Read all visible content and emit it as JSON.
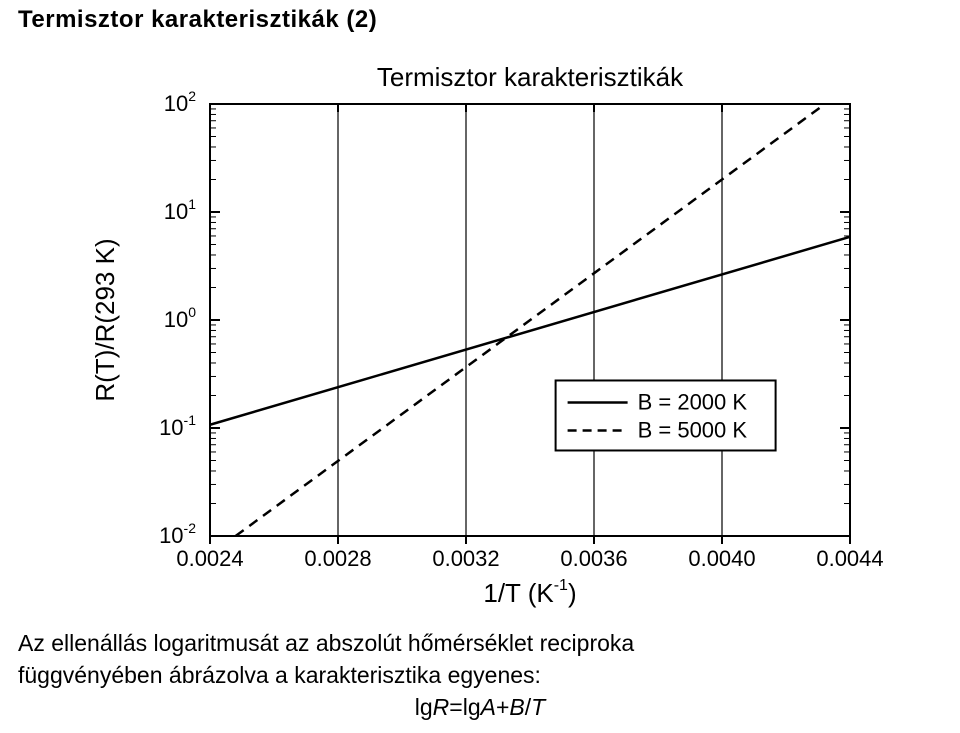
{
  "heading": "Termisztor karakterisztikák (2)",
  "chart": {
    "title": "Termisztor karakterisztikák",
    "type": "line",
    "background_color": "#ffffff",
    "axis_color": "#000000",
    "axis_width": 2,
    "grid_color": "#000000",
    "grid_width": 1.2,
    "x": {
      "label_main": "1/T (K",
      "label_sup": "-1",
      "label_close": ")",
      "ticks": [
        "0.0024",
        "0.0028",
        "0.0032",
        "0.0036",
        "0.0040",
        "0.0044"
      ],
      "tick_values": [
        0.0024,
        0.0028,
        0.0032,
        0.0036,
        0.004,
        0.0044
      ],
      "min": 0.0024,
      "max": 0.0044,
      "fontsize": 22
    },
    "y": {
      "label": "R(T)/R(293 K)",
      "scale": "log",
      "tick_exponents": [
        -2,
        -1,
        0,
        1,
        2
      ],
      "min": -2,
      "max": 2,
      "fontsize": 22,
      "tick_prefix": "10"
    },
    "series": [
      {
        "name": "B = 2000 K",
        "color": "#000000",
        "width": 2.5,
        "dash": "none",
        "points": [
          {
            "x": 0.0024,
            "log10y": -0.97
          },
          {
            "x": 0.0044,
            "log10y": 0.77
          }
        ]
      },
      {
        "name": "B = 5000 K",
        "color": "#000000",
        "width": 2.5,
        "dash": "10,7",
        "clipped": true,
        "points": [
          {
            "x": 0.00248,
            "log10y": -2.0
          },
          {
            "x": 0.0044,
            "log10y": 2.17
          }
        ]
      }
    ],
    "legend": {
      "items": [
        "B = 2000 K",
        "B = 5000 K"
      ],
      "fontsize": 22,
      "position_note": "center-right inside plot",
      "box": true
    }
  },
  "caption_line1": "Az ellenállás logaritmusát  az abszolút hőmérséklet reciproka",
  "caption_line2": "függvényében ábrázolva a karakterisztika egyenes:",
  "equation": {
    "lg1": "lg",
    "R": "R",
    "eq": "=",
    "lg2": "lg",
    "A": "A",
    "plus": "+",
    "B": "B",
    "slash": "/",
    "T": "T"
  }
}
